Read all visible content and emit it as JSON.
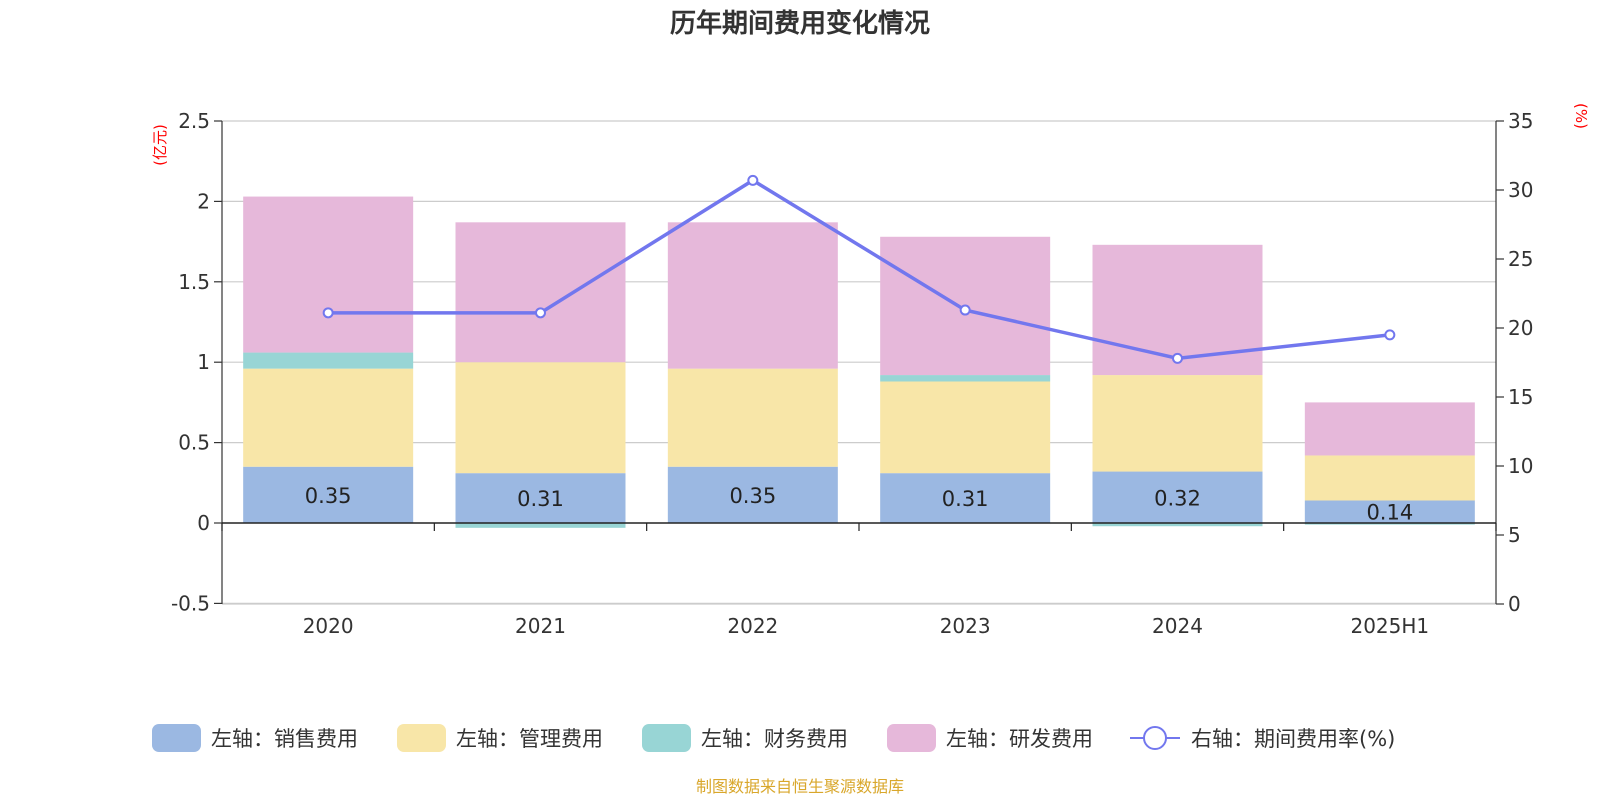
{
  "chart_data": {
    "type": "bar",
    "stacked": true,
    "title": "历年期间费用变化情况",
    "categories": [
      "2020",
      "2021",
      "2022",
      "2023",
      "2024",
      "2025H1"
    ],
    "series": [
      {
        "name": "左轴：销售费用",
        "axis": "left",
        "color": "#9bb8e2",
        "values": [
          0.35,
          0.31,
          0.35,
          0.31,
          0.32,
          0.14
        ],
        "labels": [
          "0.35",
          "0.31",
          "0.35",
          "0.31",
          "0.32",
          "0.14"
        ]
      },
      {
        "name": "左轴：管理费用",
        "axis": "left",
        "color": "#f8e6a8",
        "values": [
          0.61,
          0.69,
          0.61,
          0.57,
          0.6,
          0.28
        ]
      },
      {
        "name": "左轴：财务费用",
        "axis": "left",
        "color": "#98d5d5",
        "values": [
          0.1,
          -0.03,
          0.0,
          0.04,
          -0.02,
          -0.01
        ]
      },
      {
        "name": "左轴：研发费用",
        "axis": "left",
        "color": "#e6b8da",
        "values": [
          0.97,
          0.87,
          0.91,
          0.86,
          0.81,
          0.33
        ]
      },
      {
        "name": "右轴：期间费用率(%)",
        "axis": "right",
        "type": "line",
        "color": "#7277ee",
        "values": [
          21.1,
          21.1,
          30.7,
          21.3,
          17.8,
          19.5
        ]
      }
    ],
    "left_axis": {
      "unit": "(亿元)",
      "min": -0.5,
      "max": 2.5,
      "ticks": [
        -0.5,
        0,
        0.5,
        1,
        1.5,
        2,
        2.5
      ],
      "tick_labels": [
        "-0.5",
        "0",
        "0.5",
        "1",
        "1.5",
        "2",
        "2.5"
      ]
    },
    "right_axis": {
      "unit": "(%)",
      "min": 0,
      "max": 35,
      "ticks": [
        0,
        5,
        10,
        15,
        20,
        25,
        30,
        35
      ],
      "tick_labels": [
        "0",
        "5",
        "10",
        "15",
        "20",
        "25",
        "30",
        "35"
      ]
    },
    "grid": true,
    "legend_position": "bottom"
  },
  "source_text": "制图数据来自恒生聚源数据库"
}
